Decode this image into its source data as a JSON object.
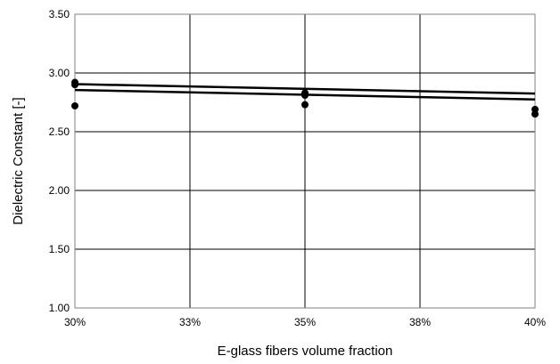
{
  "chart_data": {
    "type": "scatter",
    "title": "",
    "xlabel": "E-glass fibers volume fraction",
    "ylabel": "Dielectric Constant [-]",
    "xlim": [
      0.3,
      0.4
    ],
    "ylim": [
      1.0,
      3.5
    ],
    "x_ticks": [
      0.3,
      0.325,
      0.35,
      0.375,
      0.4
    ],
    "x_tick_labels": [
      "30%",
      "33%",
      "35%",
      "38%",
      "40%"
    ],
    "y_ticks": [
      1.0,
      1.5,
      2.0,
      2.5,
      3.0,
      3.5
    ],
    "y_tick_labels": [
      "1.00",
      "1.50",
      "2.00",
      "2.50",
      "3.00",
      "3.50"
    ],
    "grid": true,
    "legend": "none",
    "series": [
      {
        "type": "scatter",
        "x": [
          0.3,
          0.3,
          0.3,
          0.35,
          0.35,
          0.35,
          0.4,
          0.4
        ],
        "y": [
          2.92,
          2.9,
          2.72,
          2.83,
          2.81,
          2.73,
          2.69,
          2.65
        ],
        "color": "#000000"
      },
      {
        "type": "line",
        "x": [
          0.3,
          0.4
        ],
        "y": [
          2.905,
          2.825
        ],
        "color": "#000000"
      },
      {
        "type": "line",
        "x": [
          0.3,
          0.4
        ],
        "y": [
          2.855,
          2.775
        ],
        "color": "#000000"
      }
    ]
  }
}
